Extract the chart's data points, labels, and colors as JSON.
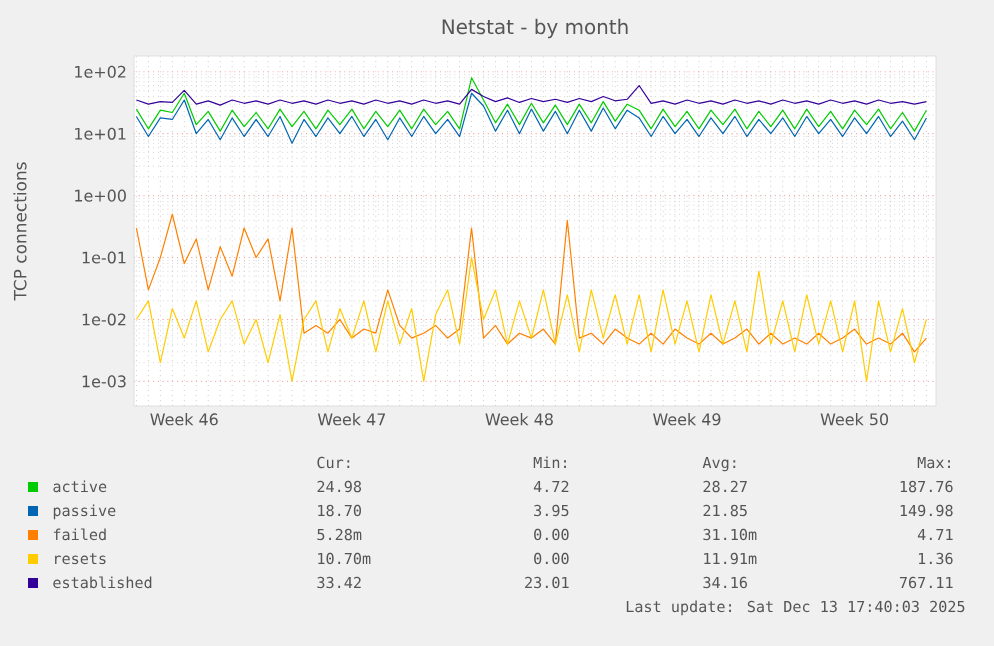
{
  "chart_data": {
    "type": "line",
    "title": "Netstat - by month",
    "ylabel": "TCP connections",
    "log": "y",
    "grid": true,
    "legend": "bottom",
    "categories": [
      null,
      null,
      null,
      null,
      "Week 46",
      null,
      null,
      null,
      null,
      null,
      null,
      null,
      null,
      null,
      null,
      null,
      null,
      null,
      "Week 47",
      null,
      null,
      null,
      null,
      null,
      null,
      null,
      null,
      null,
      null,
      null,
      null,
      null,
      "Week 48",
      null,
      null,
      null,
      null,
      null,
      null,
      null,
      null,
      null,
      null,
      null,
      null,
      null,
      "Week 49",
      null,
      null,
      null,
      null,
      null,
      null,
      null,
      null,
      null,
      null,
      null,
      null,
      null,
      "Week 50",
      null,
      null,
      null,
      null,
      null,
      null
    ],
    "ylim": [
      0.0004,
      180
    ],
    "yticks": [
      {
        "value": 0.001,
        "label": "1e-03"
      },
      {
        "value": 0.01,
        "label": "1e-02"
      },
      {
        "value": 0.1,
        "label": "1e-01"
      },
      {
        "value": 1,
        "label": "1e+00"
      },
      {
        "value": 10,
        "label": "1e+01"
      },
      {
        "value": 100,
        "label": "1e+02"
      }
    ],
    "series": [
      {
        "name": "active",
        "color": "#00cc00",
        "values": [
          25,
          12,
          24,
          22,
          45,
          14,
          23,
          11,
          24,
          13,
          22,
          12,
          25,
          13,
          23,
          12,
          24,
          14,
          25,
          12,
          23,
          13,
          24,
          12,
          25,
          14,
          23,
          12,
          80,
          35,
          15,
          30,
          14,
          31,
          15,
          29,
          14,
          30,
          15,
          33,
          16,
          30,
          24,
          12,
          25,
          13,
          23,
          12,
          24,
          14,
          25,
          12,
          23,
          13,
          24,
          12,
          25,
          13,
          23,
          12,
          24,
          14,
          25,
          12,
          22,
          11,
          24
        ]
      },
      {
        "name": "passive",
        "color": "#0066b3",
        "values": [
          19,
          9,
          18,
          17,
          35,
          10,
          17,
          8,
          18,
          9,
          17,
          9,
          19,
          7,
          17,
          9,
          18,
          10,
          19,
          9,
          17,
          8,
          18,
          9,
          19,
          10,
          17,
          9,
          45,
          28,
          11,
          24,
          10,
          25,
          11,
          23,
          10,
          24,
          11,
          26,
          12,
          24,
          18,
          9,
          19,
          10,
          17,
          9,
          18,
          10,
          19,
          9,
          17,
          10,
          18,
          9,
          19,
          10,
          17,
          9,
          18,
          10,
          19,
          9,
          16,
          8,
          18
        ]
      },
      {
        "name": "failed",
        "color": "#ff8000",
        "values": [
          0.3,
          0.03,
          0.1,
          0.5,
          0.08,
          0.2,
          0.03,
          0.15,
          0.05,
          0.3,
          0.1,
          0.2,
          0.02,
          0.3,
          0.006,
          0.008,
          0.006,
          0.01,
          0.005,
          0.007,
          0.006,
          0.03,
          0.008,
          0.005,
          0.006,
          0.008,
          0.005,
          0.007,
          0.3,
          0.005,
          0.008,
          0.004,
          0.006,
          0.005,
          0.007,
          0.004,
          0.4,
          0.005,
          0.006,
          0.004,
          0.007,
          0.005,
          0.004,
          0.006,
          0.004,
          0.007,
          0.005,
          0.004,
          0.006,
          0.004,
          0.005,
          0.007,
          0.004,
          0.006,
          0.004,
          0.005,
          0.004,
          0.006,
          0.004,
          0.005,
          0.007,
          0.004,
          0.005,
          0.004,
          0.006,
          0.003,
          0.005
        ]
      },
      {
        "name": "resets",
        "color": "#ffcc00",
        "values": [
          0.01,
          0.02,
          0.002,
          0.015,
          0.005,
          0.02,
          0.003,
          0.01,
          0.02,
          0.004,
          0.01,
          0.002,
          0.012,
          0.001,
          0.01,
          0.02,
          0.003,
          0.015,
          0.005,
          0.02,
          0.003,
          0.02,
          0.004,
          0.015,
          0.001,
          0.012,
          0.03,
          0.004,
          0.1,
          0.01,
          0.03,
          0.004,
          0.02,
          0.005,
          0.03,
          0.004,
          0.025,
          0.003,
          0.03,
          0.005,
          0.025,
          0.004,
          0.025,
          0.003,
          0.03,
          0.004,
          0.02,
          0.003,
          0.025,
          0.004,
          0.02,
          0.003,
          0.06,
          0.004,
          0.02,
          0.003,
          0.025,
          0.004,
          0.02,
          0.003,
          0.02,
          0.001,
          0.02,
          0.003,
          0.015,
          0.002,
          0.01
        ]
      },
      {
        "name": "established",
        "color": "#330099",
        "values": [
          35,
          30,
          33,
          32,
          50,
          30,
          34,
          29,
          35,
          31,
          34,
          30,
          35,
          31,
          34,
          30,
          35,
          31,
          34,
          30,
          35,
          31,
          34,
          30,
          35,
          31,
          34,
          30,
          52,
          40,
          33,
          38,
          32,
          37,
          33,
          36,
          32,
          37,
          33,
          40,
          34,
          36,
          60,
          31,
          34,
          30,
          35,
          31,
          34,
          30,
          35,
          31,
          34,
          30,
          35,
          31,
          34,
          30,
          35,
          31,
          34,
          30,
          35,
          31,
          33,
          30,
          33
        ]
      }
    ],
    "annotations": [
      "Cur:",
      "Min:",
      "Avg:",
      "Max:",
      "24.98",
      "4.72",
      "28.27",
      "187.76",
      "18.70",
      "3.95",
      "21.85",
      "149.98",
      "5.28m",
      "0.00",
      "31.10m",
      "4.71",
      "10.70m",
      "0.00",
      "11.91m",
      "1.36",
      "33.42",
      "23.01",
      "34.16",
      "767.11",
      "Last update: Sat Dec 13 17:40:03 2025"
    ]
  }
}
